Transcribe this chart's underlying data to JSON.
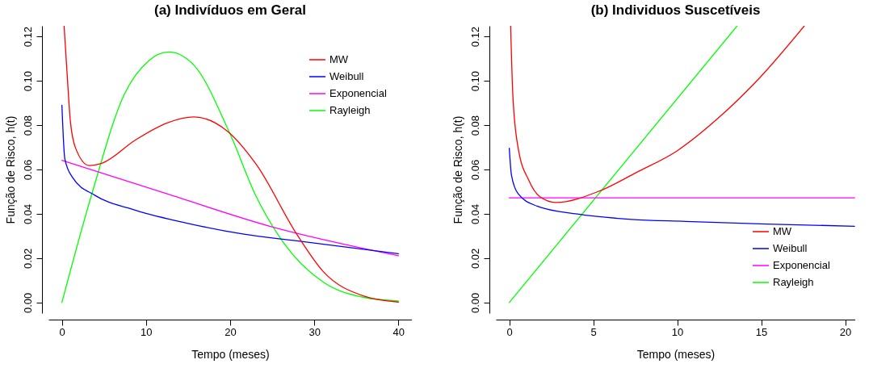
{
  "chart_data": [
    {
      "type": "line",
      "title": "(a) Indivíduos em Geral",
      "xlabel": "Tempo (meses)",
      "ylabel": "Função de Risco, h(t)",
      "xlim": [
        -1.6,
        41.6
      ],
      "ylim": [
        -0.0048,
        0.1248
      ],
      "xticks": [
        0,
        10,
        20,
        30,
        40
      ],
      "yticks": [
        {
          "value": 0,
          "label": "0.00"
        },
        {
          "value": 0.02,
          "label": "0.02"
        },
        {
          "value": 0.04,
          "label": "0.04"
        },
        {
          "value": 0.06,
          "label": "0.06"
        },
        {
          "value": 0.08,
          "label": "0.08"
        },
        {
          "value": 0.1,
          "label": "0.10"
        },
        {
          "value": 0.12,
          "label": "0.12"
        }
      ],
      "grid": false,
      "legend": "top right",
      "marker": "none",
      "line_style": "solid",
      "series": [
        {
          "name": "MW",
          "color": "#ff0000",
          "x": [
            0.26,
            0.67,
            1.0,
            1.63,
            3.24,
            4.8,
            8.7,
            12.5,
            15.7,
            19.6,
            23.1,
            27.9,
            31.1,
            35.9,
            40.0
          ],
          "values": [
            0.1247,
            0.1,
            0.082,
            0.0696,
            0.0618,
            0.0629,
            0.0732,
            0.081,
            0.0837,
            0.0775,
            0.0623,
            0.0309,
            0.0138,
            0.0029,
            0.0002
          ]
        },
        {
          "name": "Weibull",
          "color": "#0000ff",
          "x": [
            0,
            0.35,
            1.3,
            3.9,
            8.7,
            15.1,
            21.5,
            27.9,
            40.0
          ],
          "values": [
            0.089,
            0.0647,
            0.0562,
            0.0484,
            0.0417,
            0.0356,
            0.0309,
            0.0278,
            0.022
          ]
        },
        {
          "name": "Exponencial",
          "color": "#ff00ff",
          "x": [
            0,
            12.5,
            24.7,
            40.0
          ],
          "values": [
            0.0641,
            0.049,
            0.0344,
            0.0211
          ]
        },
        {
          "name": "Rayleigh",
          "color": "#00ff00",
          "x": [
            0,
            3.56,
            7.4,
            10.3,
            12.7,
            15.7,
            19.9,
            23.1,
            26.3,
            31.1,
            35.9,
            40.0
          ],
          "values": [
            0,
            0.049,
            0.0938,
            0.109,
            0.113,
            0.107,
            0.0768,
            0.0478,
            0.0272,
            0.0091,
            0.0023,
            0.0007
          ]
        }
      ]
    },
    {
      "type": "line",
      "title": "(b) Individuos Suscetíveis",
      "xlabel": "Tempo (meses)",
      "ylabel": "Função de Risco, h(t)",
      "xlim": [
        -0.8,
        20.6
      ],
      "ylim": [
        -0.0048,
        0.1248
      ],
      "xticks": [
        0,
        5,
        10,
        15,
        20
      ],
      "yticks": [
        {
          "value": 0,
          "label": "0.00"
        },
        {
          "value": 0.02,
          "label": "0.02"
        },
        {
          "value": 0.04,
          "label": "0.04"
        },
        {
          "value": 0.06,
          "label": "0.06"
        },
        {
          "value": 0.08,
          "label": "0.08"
        },
        {
          "value": 0.1,
          "label": "0.10"
        },
        {
          "value": 0.12,
          "label": "0.12"
        }
      ],
      "grid": false,
      "legend": "bottom right",
      "marker": "none",
      "line_style": "solid",
      "series": [
        {
          "name": "MW",
          "color": "#ff0000",
          "x": [
            0.08,
            0.21,
            0.53,
            1.17,
            1.81,
            2.77,
            5.34,
            7.58,
            9.99,
            12.4,
            14.95,
            17.56
          ],
          "values": [
            0.1247,
            0.0938,
            0.0696,
            0.055,
            0.0478,
            0.0451,
            0.0502,
            0.0587,
            0.0684,
            0.0829,
            0.1017,
            0.1247
          ]
        },
        {
          "name": "Weibull",
          "color": "#0000ff",
          "x": [
            0,
            0.13,
            0.53,
            1.65,
            4.05,
            7.26,
            10.5,
            15.3,
            20.56
          ],
          "values": [
            0.0696,
            0.0574,
            0.049,
            0.0435,
            0.0399,
            0.0375,
            0.0366,
            0.0354,
            0.0344
          ]
        },
        {
          "name": "Exponencial",
          "color": "#ff00ff",
          "x": [
            0,
            20.56
          ],
          "values": [
            0.0472,
            0.0472
          ]
        },
        {
          "name": "Rayleigh",
          "color": "#00ff00",
          "x": [
            0,
            13.56
          ],
          "values": [
            0,
            0.1247
          ]
        }
      ]
    }
  ]
}
